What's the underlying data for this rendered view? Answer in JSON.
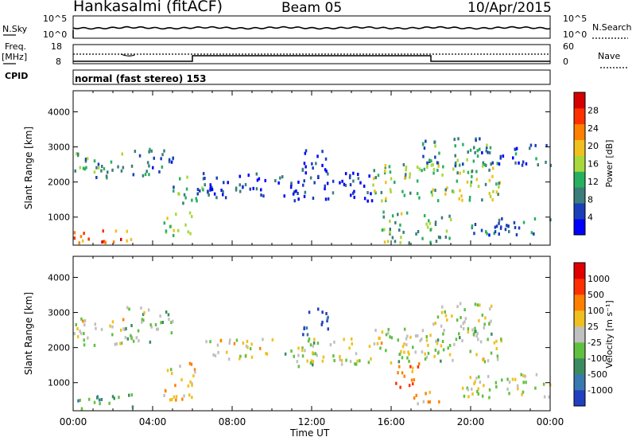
{
  "header": {
    "station": "Hankasalmi (fitACF)",
    "beam": "Beam 05",
    "date": "10/Apr/2015"
  },
  "left_labels": {
    "nsky": "N.Sky",
    "freq": "Freq.",
    "mhz": "[MHz]",
    "cpid": "CPID"
  },
  "right_labels": {
    "nsearch": "N.Search",
    "nave": "Nave"
  },
  "nsky_ticks": [
    "10^5",
    "10^0"
  ],
  "nsearch_ticks": [
    "10^5",
    "10^0"
  ],
  "freq_ticks": [
    "18",
    "8"
  ],
  "nave_ticks": [
    "60",
    "0"
  ],
  "cpid_text": "normal (fast stereo) 153",
  "chart_data": [
    {
      "type": "heatmap",
      "name": "power",
      "xlabel": "Time UT",
      "ylabel": "Slant Range [km]",
      "xticks": [
        "00:00",
        "04:00",
        "08:00",
        "12:00",
        "16:00",
        "20:00",
        "00:00"
      ],
      "yticks": [
        1000,
        2000,
        3000,
        4000
      ],
      "xlim": [
        0,
        24
      ],
      "ylim": [
        200,
        4600
      ],
      "colorbar": {
        "label": "Power [dB]",
        "ticks": [
          4,
          8,
          12,
          16,
          20,
          24,
          28
        ],
        "colors": [
          "#0000ff",
          "#1a3fb8",
          "#3a7d7a",
          "#26b060",
          "#a8d83c",
          "#f0c020",
          "#ff8000",
          "#ff3000",
          "#d40000"
        ]
      },
      "blobs": [
        {
          "t0": 0.0,
          "t1": 2.5,
          "r0": 2100,
          "r1": 2900,
          "v": 0.35
        },
        {
          "t0": 0.0,
          "t1": 3.2,
          "r0": 300,
          "r1": 700,
          "v": 0.75
        },
        {
          "t0": 2.8,
          "t1": 5.0,
          "r0": 2200,
          "r1": 3000,
          "v": 0.25
        },
        {
          "t0": 4.5,
          "t1": 6.0,
          "r0": 500,
          "r1": 1200,
          "v": 0.5
        },
        {
          "t0": 5.0,
          "t1": 7.0,
          "r0": 1400,
          "r1": 2200,
          "v": 0.35
        },
        {
          "t0": 6.5,
          "t1": 10.5,
          "r0": 1600,
          "r1": 2300,
          "v": 0.15
        },
        {
          "t0": 10.5,
          "t1": 15.0,
          "r0": 1500,
          "r1": 2300,
          "v": 0.12
        },
        {
          "t0": 11.5,
          "t1": 12.8,
          "r0": 2200,
          "r1": 3100,
          "v": 0.12
        },
        {
          "t0": 15.0,
          "t1": 21.5,
          "r0": 1500,
          "r1": 2600,
          "v": 0.45
        },
        {
          "t0": 17.5,
          "t1": 21.0,
          "r0": 2500,
          "r1": 3300,
          "v": 0.3
        },
        {
          "t0": 15.5,
          "t1": 19.0,
          "r0": 300,
          "r1": 1200,
          "v": 0.4
        },
        {
          "t0": 19.5,
          "t1": 24.0,
          "r0": 500,
          "r1": 1000,
          "v": 0.25
        },
        {
          "t0": 20.5,
          "t1": 24.0,
          "r0": 2500,
          "r1": 3100,
          "v": 0.2
        }
      ]
    },
    {
      "type": "heatmap",
      "name": "velocity",
      "xlabel": "Time UT",
      "ylabel": "Slant Range [km]",
      "xticks": [
        "00:00",
        "04:00",
        "08:00",
        "12:00",
        "16:00",
        "20:00",
        "00:00"
      ],
      "yticks": [
        1000,
        2000,
        3000,
        4000
      ],
      "xlim": [
        0,
        24
      ],
      "ylim": [
        200,
        4600
      ],
      "colorbar": {
        "label": "Velocity [m s⁻¹]",
        "ticks": [
          1000,
          500,
          100,
          25,
          -25,
          -100,
          -500,
          -1000
        ],
        "colors": [
          "#2040c0",
          "#3a78b0",
          "#3a8c60",
          "#60c040",
          "#c0c0c0",
          "#f0c020",
          "#ff8000",
          "#ff3000",
          "#e00000"
        ]
      },
      "blobs": [
        {
          "t0": 0.0,
          "t1": 2.5,
          "r0": 2100,
          "r1": 2900,
          "v": 0.5
        },
        {
          "t0": 0.0,
          "t1": 3.0,
          "r0": 300,
          "r1": 700,
          "v": 0.3
        },
        {
          "t0": 2.5,
          "t1": 5.0,
          "r0": 2200,
          "r1": 3200,
          "v": 0.45
        },
        {
          "t0": 4.5,
          "t1": 6.2,
          "r0": 500,
          "r1": 1600,
          "v": 0.6
        },
        {
          "t0": 6.5,
          "t1": 10.0,
          "r0": 1700,
          "r1": 2300,
          "v": 0.55
        },
        {
          "t0": 10.5,
          "t1": 15.0,
          "r0": 1500,
          "r1": 2300,
          "v": 0.5
        },
        {
          "t0": 11.5,
          "t1": 12.8,
          "r0": 2400,
          "r1": 3200,
          "v": 0.1
        },
        {
          "t0": 15.0,
          "t1": 21.5,
          "r0": 1600,
          "r1": 2600,
          "v": 0.5
        },
        {
          "t0": 16.0,
          "t1": 17.5,
          "r0": 900,
          "r1": 1600,
          "v": 0.7
        },
        {
          "t0": 17.0,
          "t1": 18.5,
          "r0": 400,
          "r1": 800,
          "v": 0.65
        },
        {
          "t0": 18.0,
          "t1": 21.0,
          "r0": 2400,
          "r1": 3300,
          "v": 0.5
        },
        {
          "t0": 19.5,
          "t1": 24.0,
          "r0": 600,
          "r1": 1300,
          "v": 0.5
        }
      ]
    }
  ]
}
